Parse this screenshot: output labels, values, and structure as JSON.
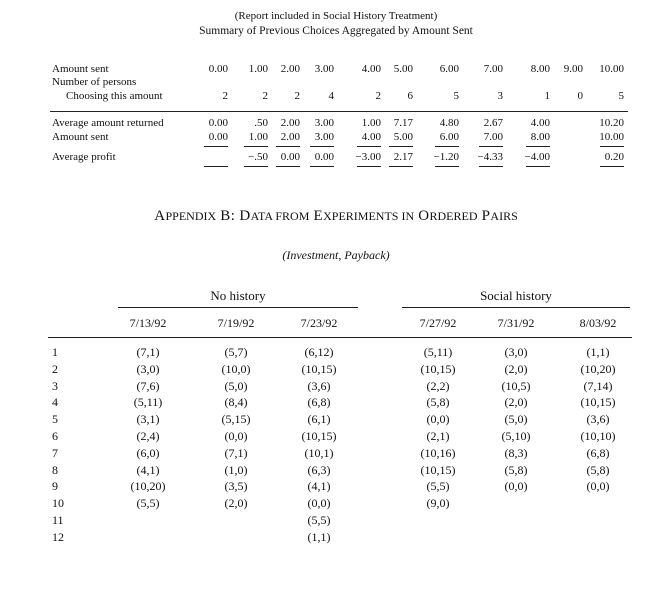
{
  "report": {
    "note": "(Report included in Social History Treatment)",
    "title": "Summary of Previous Choices Aggregated by Amount Sent",
    "labels": {
      "amount_sent": "Amount sent",
      "number_of_persons": "Number of persons",
      "choosing": "Choosing this amount",
      "avg_returned": "Average amount returned",
      "amount_sent_2": "Amount sent",
      "avg_profit": "Average profit"
    },
    "amount_sent_values": [
      "0.00",
      "1.00",
      "2.00",
      "3.00",
      "4.00",
      "5.00",
      "6.00",
      "7.00",
      "8.00",
      "9.00",
      "10.00"
    ],
    "choosing_values": [
      "2",
      "2",
      "2",
      "4",
      "2",
      "6",
      "5",
      "3",
      "1",
      "0",
      "5"
    ],
    "avg_returned_values": [
      "0.00",
      ".50",
      "2.00",
      "3.00",
      "1.00",
      "7.17",
      "4.80",
      "2.67",
      "4.00",
      "",
      "10.20"
    ],
    "amount_sent_row2": [
      "0.00",
      "1.00",
      "2.00",
      "3.00",
      "4.00",
      "5.00",
      "6.00",
      "7.00",
      "8.00",
      "",
      "10.00"
    ],
    "avg_profit_values": [
      "",
      "-.50",
      "0.00",
      "0.00",
      "-3.00",
      "2.17",
      "-1.20",
      "-4.33",
      "-4.00",
      "",
      "0.20"
    ]
  },
  "appendix": {
    "title_parts": [
      "A",
      "PPENDIX",
      " B: D",
      "ATA FROM",
      " E",
      "XPERIMENTS IN",
      " O",
      "RDERED",
      " P",
      "AIRS"
    ],
    "subtitle": "(Investment, Payback)",
    "group_no_history": "No history",
    "group_social_history": "Social history",
    "dates": [
      "7/13/92",
      "7/19/92",
      "7/23/92",
      "7/27/92",
      "7/31/92",
      "8/03/92"
    ],
    "row_numbers": [
      "1",
      "2",
      "3",
      "4",
      "5",
      "6",
      "7",
      "8",
      "9",
      "10",
      "11",
      "12"
    ],
    "columns": [
      [
        "(7,1)",
        "(3,0)",
        "(7,6)",
        "(5,11)",
        "(3,1)",
        "(2,4)",
        "(6,0)",
        "(4,1)",
        "(10,20)",
        "(5,5)",
        "",
        ""
      ],
      [
        "(5,7)",
        "(10,0)",
        "(5,0)",
        "(8,4)",
        "(5,15)",
        "(0,0)",
        "(7,1)",
        "(1,0)",
        "(3,5)",
        "(2,0)",
        "",
        ""
      ],
      [
        "(6,12)",
        "(10,15)",
        "(3,6)",
        "(6,8)",
        "(6,1)",
        "(10,15)",
        "(10,1)",
        "(6,3)",
        "(4,1)",
        "(0,0)",
        "(5,5)",
        "(1,1)"
      ],
      [
        "(5,11)",
        "(10,15)",
        "(2,2)",
        "(5,8)",
        "(0,0)",
        "(2,1)",
        "(10,16)",
        "(10,15)",
        "(5,5)",
        "(9,0)",
        "",
        ""
      ],
      [
        "(3,0)",
        "(2,0)",
        "(10,5)",
        "(2,0)",
        "(5,0)",
        "(5,10)",
        "(8,3)",
        "(5,8)",
        "(0,0)",
        "",
        "",
        ""
      ],
      [
        "(1,1)",
        "(10,20)",
        "(7,14)",
        "(10,15)",
        "(3,6)",
        "(10,10)",
        "(6,8)",
        "(5,8)",
        "(0,0)",
        "",
        "",
        ""
      ]
    ]
  }
}
